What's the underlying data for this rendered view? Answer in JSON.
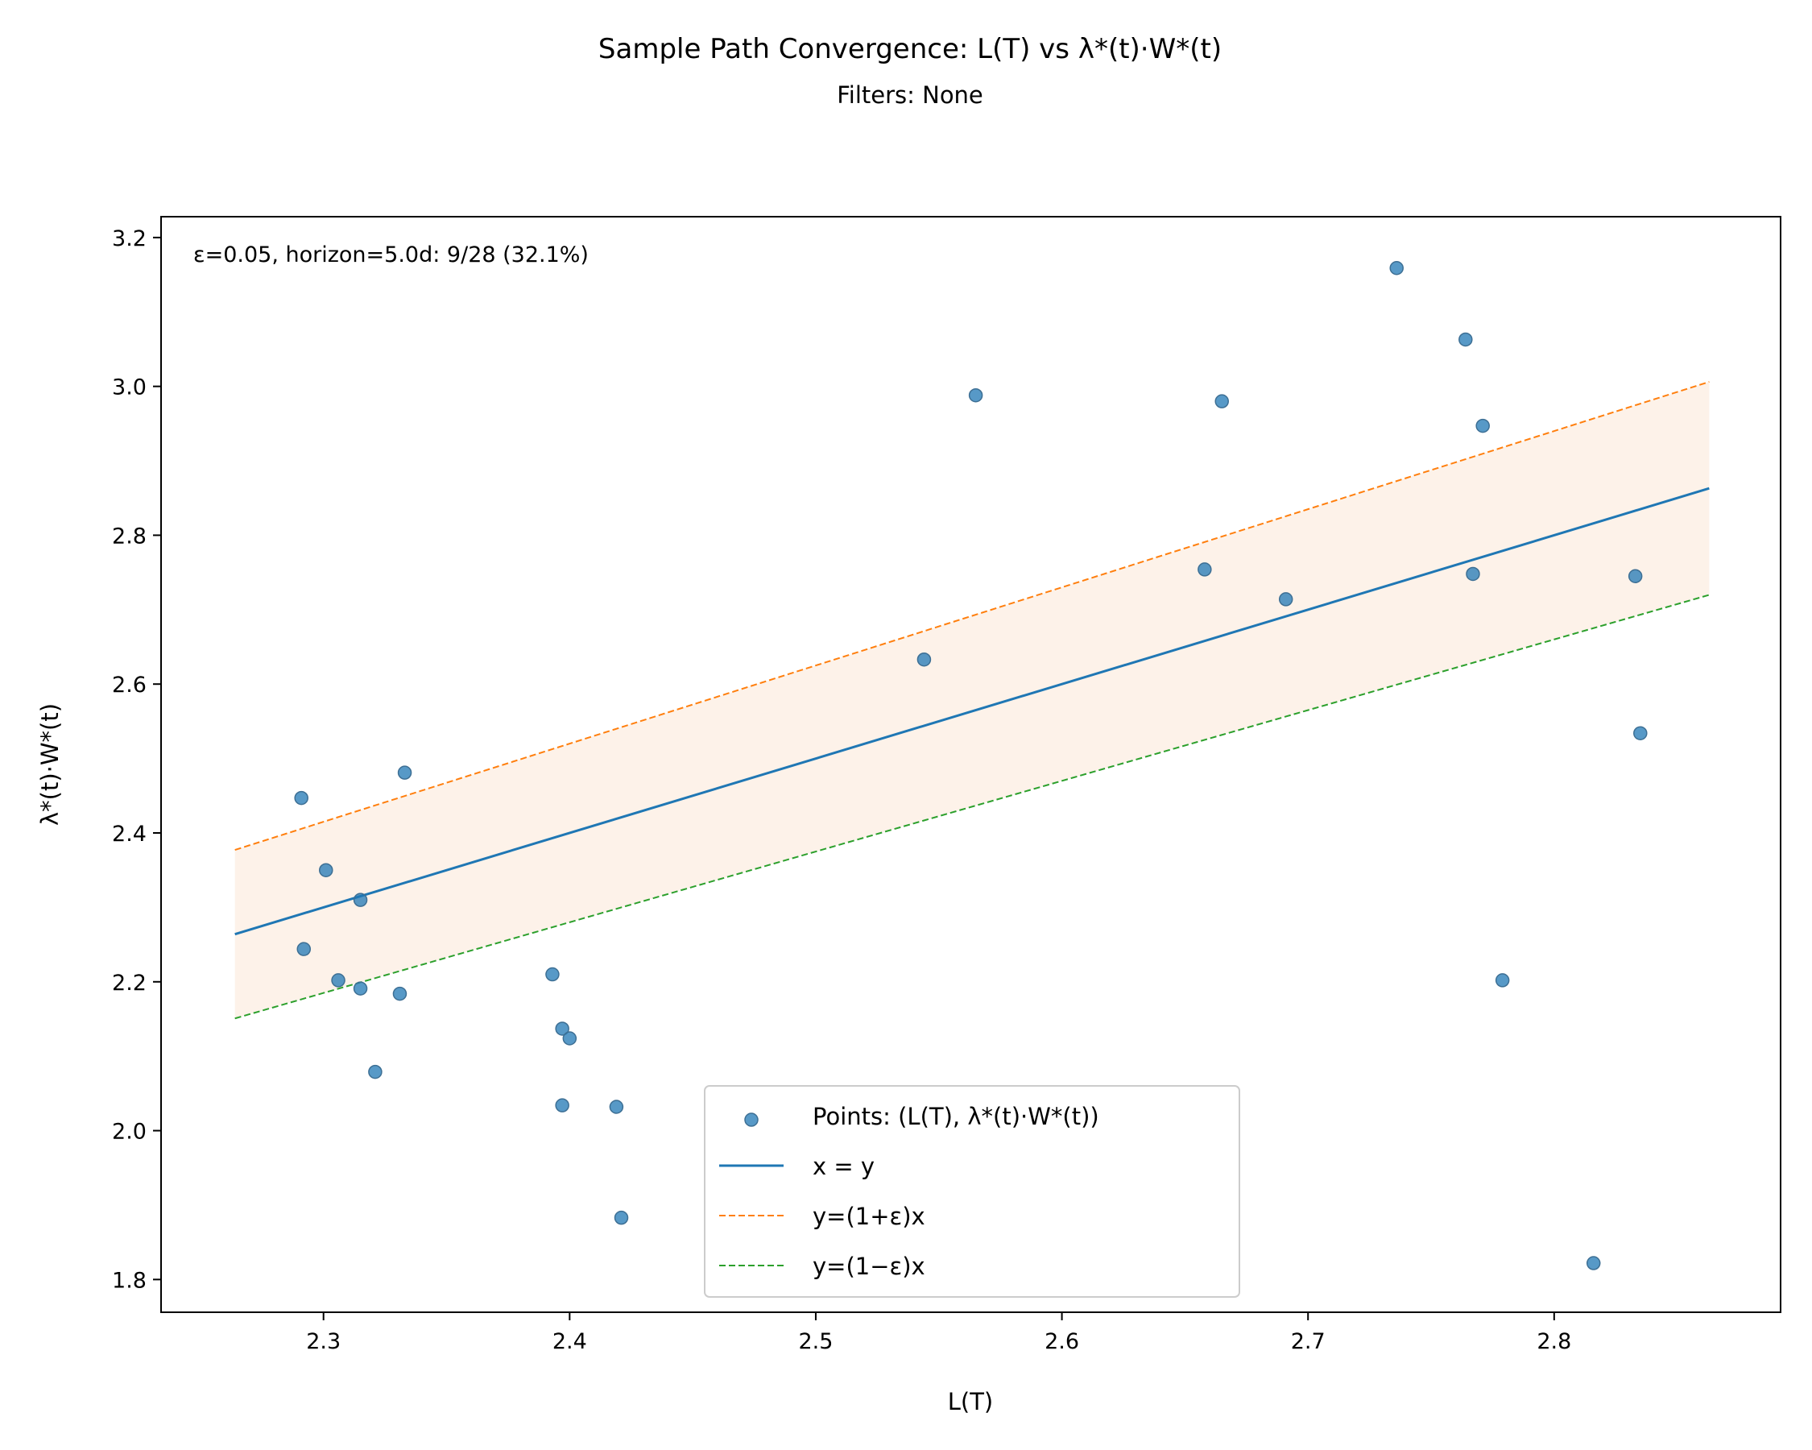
{
  "chart_data": {
    "type": "scatter",
    "title": "Sample Path Convergence: L(T) vs λ*(t)·W*(t)",
    "subtitle": "Filters: None",
    "xlabel": "L(T)",
    "ylabel": "λ*(t)·W*(t)",
    "xlim": [
      2.234,
      2.892
    ],
    "ylim": [
      1.756,
      3.228
    ],
    "xticks": [
      2.3,
      2.4,
      2.5,
      2.6,
      2.7,
      2.8
    ],
    "xtick_labels": [
      "2.3",
      "2.4",
      "2.5",
      "2.6",
      "2.7",
      "2.8"
    ],
    "yticks": [
      1.8,
      2.0,
      2.2,
      2.4,
      2.6,
      2.8,
      3.0,
      3.2
    ],
    "ytick_labels": [
      "1.8",
      "2.0",
      "2.2",
      "2.4",
      "2.6",
      "2.8",
      "3.0",
      "3.2"
    ],
    "grid": false,
    "annotation": "ε=0.05, horizon=5.0d:  9/28  (32.1%)",
    "epsilon": 0.05,
    "line_range": [
      2.264,
      2.863
    ],
    "legend_position": "lower center",
    "series": [
      {
        "name": "Points: (L(T), λ*(t)·W*(t))",
        "kind": "scatter",
        "color": "#1f77b4",
        "x": [
          2.291,
          2.292,
          2.301,
          2.306,
          2.315,
          2.315,
          2.321,
          2.331,
          2.333,
          2.393,
          2.397,
          2.4,
          2.397,
          2.419,
          2.421,
          2.544,
          2.565,
          2.658,
          2.665,
          2.691,
          2.736,
          2.764,
          2.767,
          2.771,
          2.779,
          2.816,
          2.833,
          2.835
        ],
        "y": [
          2.447,
          2.244,
          2.35,
          2.202,
          2.31,
          2.191,
          2.079,
          2.184,
          2.481,
          2.21,
          2.137,
          2.124,
          2.034,
          2.032,
          1.883,
          2.633,
          2.988,
          2.754,
          2.98,
          2.714,
          3.159,
          3.063,
          2.748,
          2.947,
          2.202,
          1.822,
          2.745,
          2.534
        ]
      },
      {
        "name": "x = y",
        "kind": "line",
        "color": "#1f77b4",
        "factor": 1.0
      },
      {
        "name": "y=(1+ε)x",
        "kind": "dashed",
        "color": "#ff7f0e",
        "factor": 1.05
      },
      {
        "name": "y=(1−ε)x",
        "kind": "dashed",
        "color": "#2ca02c",
        "factor": 0.95
      }
    ],
    "band_color": "#fdf2e9"
  }
}
